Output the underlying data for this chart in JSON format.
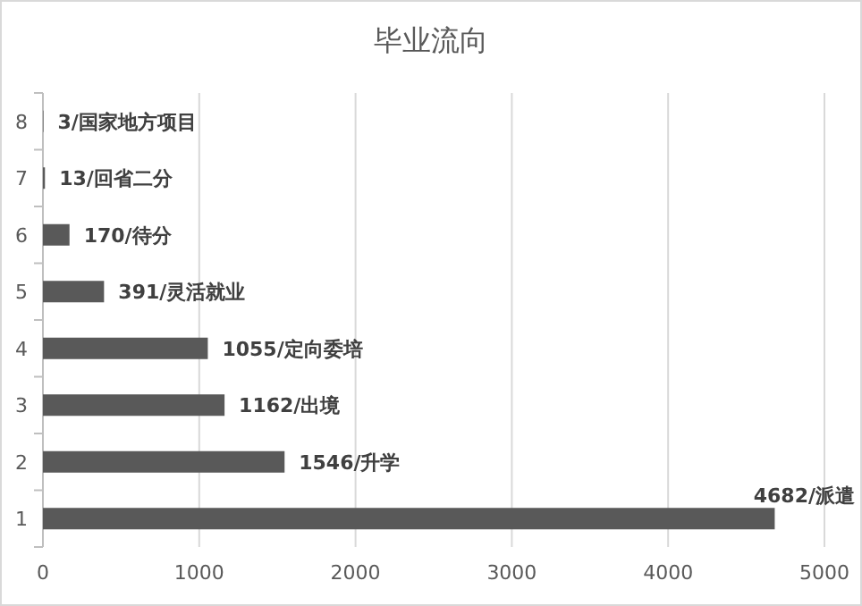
{
  "chart_data": {
    "type": "bar",
    "orientation": "horizontal",
    "title": "毕业流向",
    "categories": [
      "8",
      "7",
      "6",
      "5",
      "4",
      "3",
      "2",
      "1"
    ],
    "values": [
      3,
      13,
      170,
      391,
      1055,
      1162,
      1546,
      4682
    ],
    "value_labels": [
      "3/国家地方项目",
      "13/回省二分",
      "170/待分",
      "391/灵活就业",
      "1055/定向委培",
      "1162/出境",
      "1546/升学",
      "4682/派遣"
    ],
    "color": "#595959",
    "xlim": [
      0,
      5000
    ],
    "xticks": [
      0,
      1000,
      2000,
      3000,
      4000,
      5000
    ],
    "grid": "x"
  }
}
